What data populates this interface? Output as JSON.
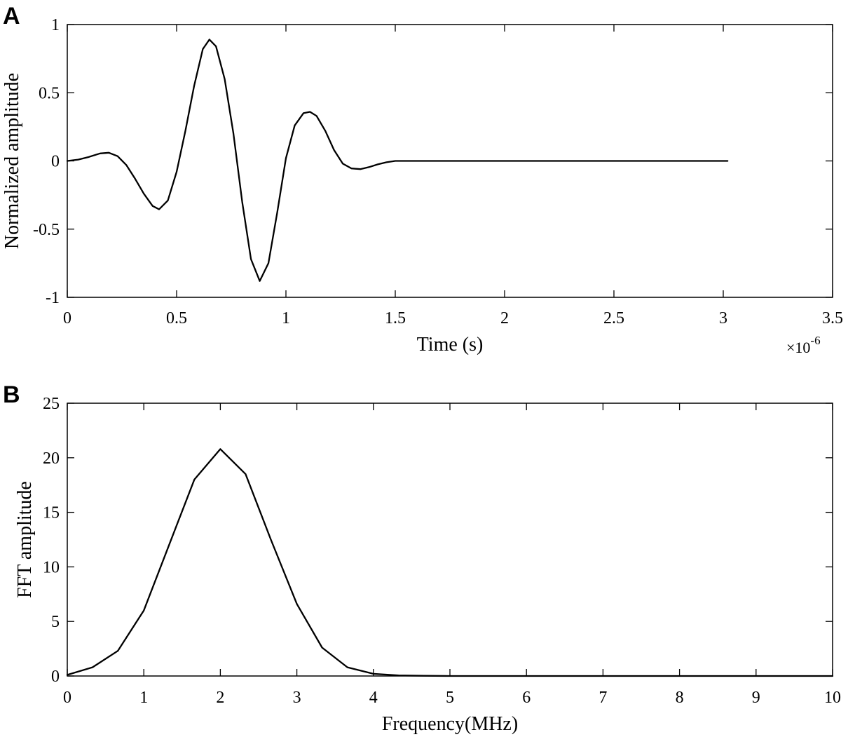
{
  "chart_data": [
    {
      "panel_label": "A",
      "type": "line",
      "title": "",
      "xlabel": "Time (s)",
      "ylabel": "Normalized amplitude",
      "x_exponent_label": "×10",
      "x_exponent_power": "-6",
      "xlim": [
        0,
        3.5
      ],
      "ylim": [
        -1,
        1
      ],
      "xticks": [
        0,
        0.5,
        1,
        1.5,
        2,
        2.5,
        3,
        3.5
      ],
      "xtick_labels": [
        "0",
        "0.5",
        "1",
        "1.5",
        "2",
        "2.5",
        "3",
        "3.5"
      ],
      "yticks": [
        -1,
        -0.5,
        0,
        0.5,
        1
      ],
      "ytick_labels": [
        "-1",
        "-0.5",
        "0",
        "0.5",
        "1"
      ],
      "grid": false,
      "line_color": "#000000",
      "series": [
        {
          "x": [
            0,
            0.05,
            0.1,
            0.15,
            0.19,
            0.23,
            0.27,
            0.31,
            0.35,
            0.39,
            0.42,
            0.46,
            0.5,
            0.54,
            0.58,
            0.62,
            0.65,
            0.68,
            0.72,
            0.76,
            0.8,
            0.84,
            0.88,
            0.92,
            0.96,
            1.0,
            1.04,
            1.08,
            1.11,
            1.14,
            1.18,
            1.22,
            1.26,
            1.3,
            1.34,
            1.38,
            1.42,
            1.46,
            1.5,
            1.6,
            2.0,
            2.5,
            3.02
          ],
          "y": [
            0,
            0.01,
            0.03,
            0.055,
            0.06,
            0.035,
            -0.03,
            -0.13,
            -0.24,
            -0.33,
            -0.355,
            -0.29,
            -0.08,
            0.22,
            0.55,
            0.82,
            0.89,
            0.84,
            0.6,
            0.2,
            -0.3,
            -0.72,
            -0.88,
            -0.75,
            -0.38,
            0.02,
            0.26,
            0.35,
            0.36,
            0.33,
            0.22,
            0.08,
            -0.02,
            -0.055,
            -0.06,
            -0.045,
            -0.025,
            -0.01,
            0,
            0,
            0,
            0,
            0
          ]
        }
      ]
    },
    {
      "panel_label": "B",
      "type": "line",
      "title": "",
      "xlabel": "Frequency(MHz)",
      "ylabel": "FFT amplitude",
      "xlim": [
        0,
        10
      ],
      "ylim": [
        0,
        25
      ],
      "xticks": [
        0,
        1,
        2,
        3,
        4,
        5,
        6,
        7,
        8,
        9,
        10
      ],
      "xtick_labels": [
        "0",
        "1",
        "2",
        "3",
        "4",
        "5",
        "6",
        "7",
        "8",
        "9",
        "10"
      ],
      "yticks": [
        0,
        5,
        10,
        15,
        20,
        25
      ],
      "ytick_labels": [
        "0",
        "5",
        "10",
        "15",
        "20",
        "25"
      ],
      "grid": false,
      "line_color": "#000000",
      "series": [
        {
          "x": [
            0,
            0.33,
            0.66,
            1.0,
            1.33,
            1.66,
            2.0,
            2.33,
            2.66,
            3.0,
            3.33,
            3.66,
            4.0,
            4.33,
            4.66,
            5.0,
            6.0,
            7.0,
            8.0,
            9.0,
            10.0
          ],
          "y": [
            0.1,
            0.8,
            2.3,
            6.0,
            12.0,
            18.0,
            20.8,
            18.5,
            12.5,
            6.6,
            2.6,
            0.8,
            0.2,
            0.05,
            0.02,
            0.0,
            0.0,
            0.0,
            0.0,
            0.0,
            0.0
          ]
        }
      ]
    }
  ]
}
